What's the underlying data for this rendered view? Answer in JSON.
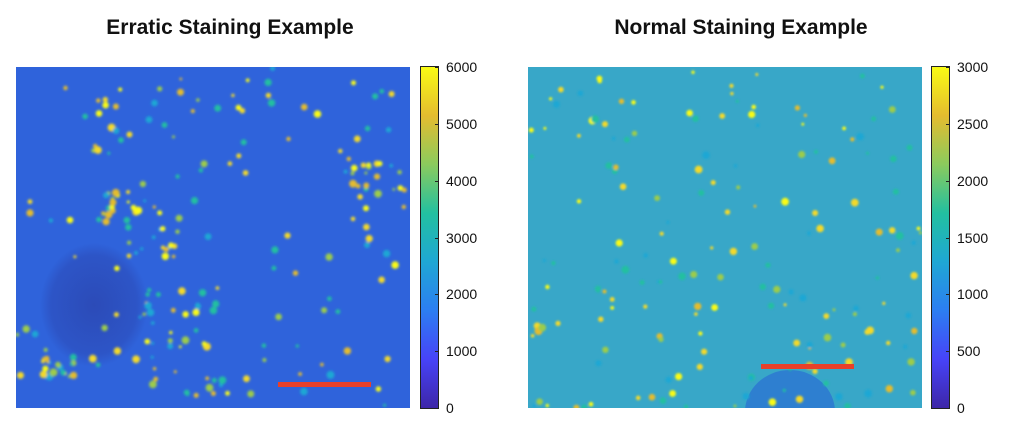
{
  "panels": [
    {
      "title": "Erratic Staining Example",
      "colorbar_ticks": [
        "0",
        "1000",
        "2000",
        "3000",
        "4000",
        "5000",
        "6000"
      ],
      "background_color": "#2f63db"
    },
    {
      "title": "Normal Staining Example",
      "colorbar_ticks": [
        "0",
        "500",
        "1000",
        "1500",
        "2000",
        "2500",
        "3000"
      ],
      "background_color": "#38a7c8"
    }
  ],
  "scale_bar_color": "#e8402a",
  "colormap": [
    "#3d26a8",
    "#4743f8",
    "#2c7ef2",
    "#1fa7d4",
    "#22c0a0",
    "#8bcb5d",
    "#e4bc2f",
    "#f9fb14"
  ]
}
